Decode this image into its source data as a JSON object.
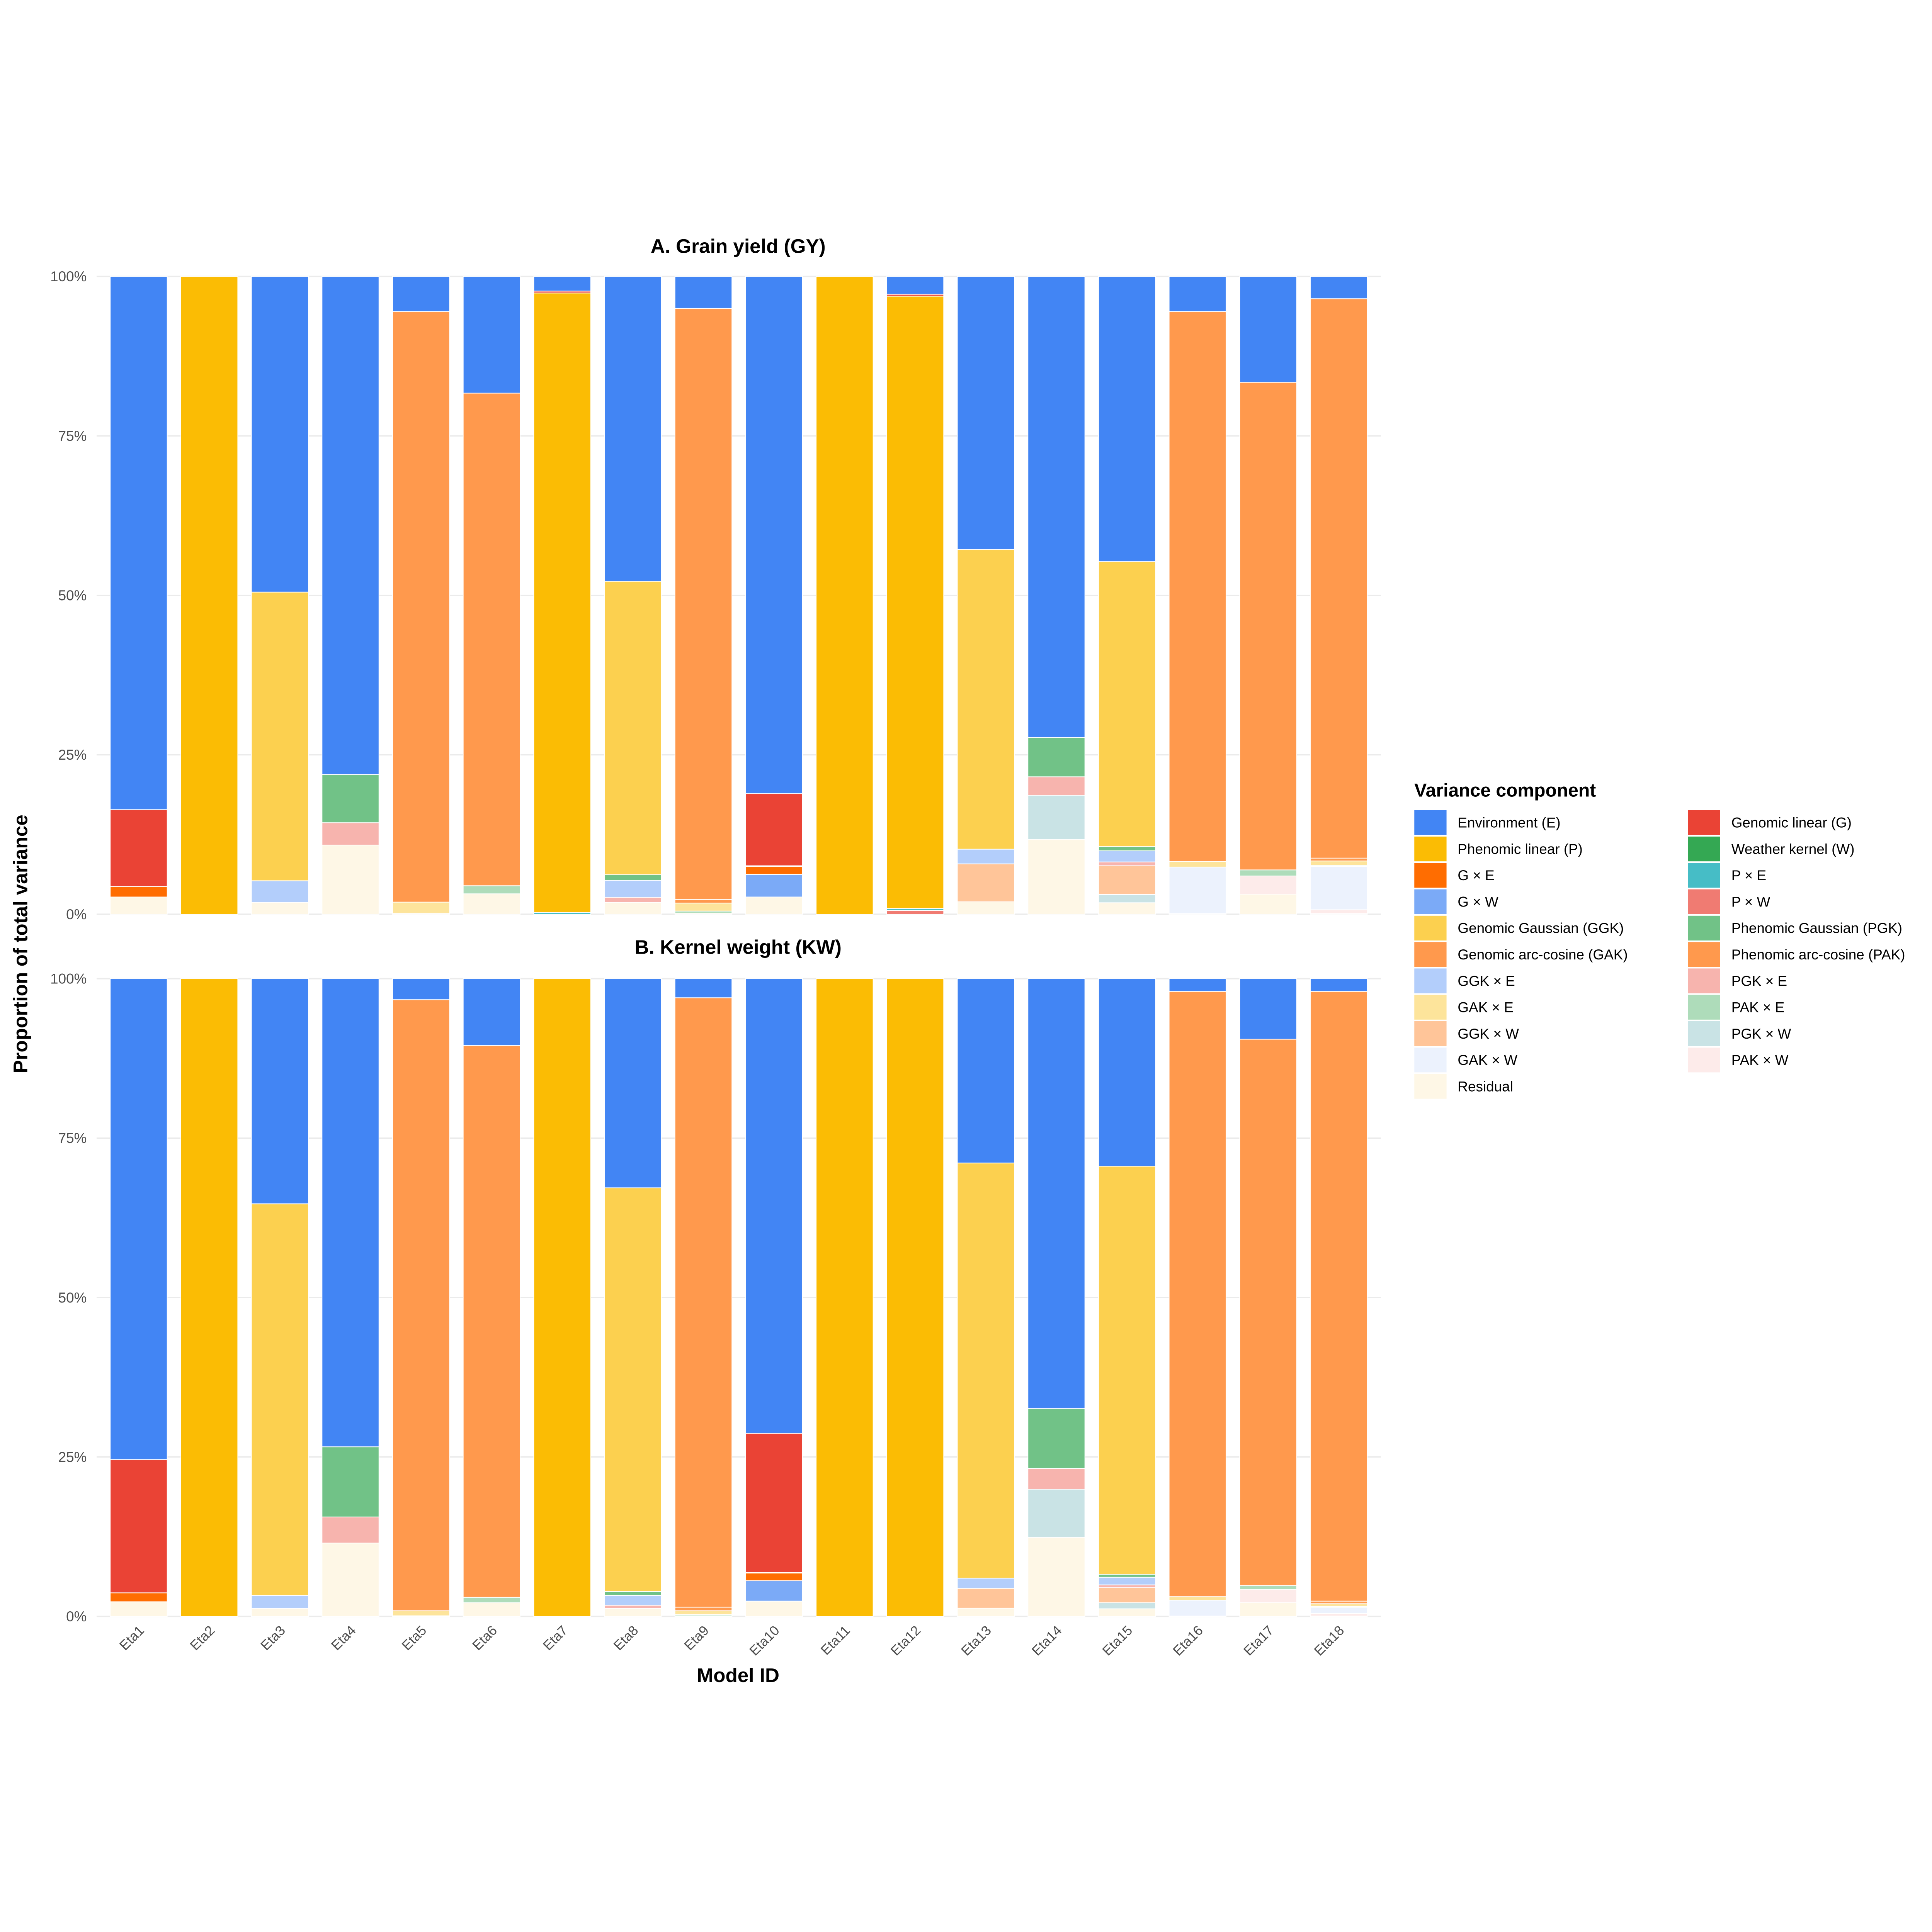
{
  "components": [
    {
      "key": "E",
      "label": "Environment (E)",
      "color": "#4285F4"
    },
    {
      "key": "P",
      "label": "Phenomic linear (P)",
      "color": "#FBBC04"
    },
    {
      "key": "GxE",
      "label": "G × E",
      "color": "#FF6D01"
    },
    {
      "key": "GxW",
      "label": "G × W",
      "color": "#7BAAF7"
    },
    {
      "key": "GGK",
      "label": "Genomic Gaussian (GGK)",
      "color": "#FCD04F"
    },
    {
      "key": "GAK",
      "label": "Genomic arc-cosine (GAK)",
      "color": "#FF994D"
    },
    {
      "key": "GGKxE",
      "label": "GGK × E",
      "color": "#B3CEFB"
    },
    {
      "key": "GAKxE",
      "label": "GAK × E",
      "color": "#FDE49B"
    },
    {
      "key": "GGKxW",
      "label": "GGK × W",
      "color": "#FFC599"
    },
    {
      "key": "GAKxW",
      "label": "GAK × W",
      "color": "#ECF2FD"
    },
    {
      "key": "Residual",
      "label": "Residual",
      "color": "#FEF7E6"
    },
    {
      "key": "G",
      "label": "Genomic linear (G)",
      "color": "#EA4335"
    },
    {
      "key": "W",
      "label": "Weather kernel (W)",
      "color": "#34A853"
    },
    {
      "key": "PxE",
      "label": "P × E",
      "color": "#46BDC6"
    },
    {
      "key": "PxW",
      "label": "P × W",
      "color": "#F07B72"
    },
    {
      "key": "PGK",
      "label": "Phenomic Gaussian (PGK)",
      "color": "#71C287"
    },
    {
      "key": "PAK",
      "label": "Phenomic arc-cosine (PAK)",
      "color": "#FF994D"
    },
    {
      "key": "PGKxE",
      "label": "PGK × E",
      "color": "#F7B4AE"
    },
    {
      "key": "PAKxE",
      "label": "PAK × E",
      "color": "#AEDCBA"
    },
    {
      "key": "PGKxW",
      "label": "PGK × W",
      "color": "#C9E3E5"
    },
    {
      "key": "PAKxW",
      "label": "PAK × W",
      "color": "#FDEBEA"
    }
  ],
  "stack_order_top_to_bottom": [
    "E",
    "G",
    "P",
    "W",
    "GxE",
    "PxE",
    "GxW",
    "PxW",
    "GGK",
    "PGK",
    "GAK",
    "PAK",
    "GGKxE",
    "PGKxE",
    "GAKxE",
    "PAKxE",
    "GGKxW",
    "PGKxW",
    "GAKxW",
    "PAKxW",
    "Residual"
  ],
  "legend": {
    "title": "Variance component",
    "columns": 2
  },
  "axes": {
    "xlabel": "Model ID",
    "ylabel": "Proportion of total variance"
  },
  "chart_data": [
    {
      "type": "bar",
      "stacked": true,
      "title": "A. Grain yield (GY)",
      "xlabel": "Model ID",
      "ylabel": "Proportion of total variance",
      "ylim": [
        0,
        100
      ],
      "yticks": [
        "0%",
        "25%",
        "50%",
        "75%",
        "100%"
      ],
      "grid": true,
      "legend_position": "right",
      "categories": [
        "Eta1",
        "Eta2",
        "Eta3",
        "Eta4",
        "Eta5",
        "Eta6",
        "Eta7",
        "Eta8",
        "Eta9",
        "Eta10",
        "Eta11",
        "Eta12",
        "Eta13",
        "Eta14",
        "Eta15",
        "Eta16",
        "Eta17",
        "Eta18"
      ],
      "values_percent": [
        {
          "Residual": 2.7,
          "GxE": 1.65,
          "G": 12.05,
          "E": 83.6
        },
        {
          "P": 100
        },
        {
          "Residual": 1.85,
          "GGKxE": 3.4,
          "GGK": 45.25,
          "E": 49.5
        },
        {
          "Residual": 10.85,
          "PGKxE": 3.5,
          "PGK": 7.55,
          "E": 78.1
        },
        {
          "Residual": 0.15,
          "GAKxE": 1.75,
          "GAK": 92.6,
          "E": 5.5
        },
        {
          "Residual": 3.2,
          "PAKxE": 1.27,
          "PAK": 77.23,
          "E": 18.3
        },
        {
          "PxE": 0.3,
          "P": 97.1,
          "G": 0.3,
          "E": 2.3
        },
        {
          "Residual": 1.85,
          "PGKxE": 0.8,
          "GGKxE": 2.65,
          "PGK": 0.9,
          "GGK": 46.0,
          "E": 47.8
        },
        {
          "Residual": 0.15,
          "PAKxE": 0.35,
          "GAKxE": 1.25,
          "PAK": 0.55,
          "GAK": 92.7,
          "E": 5.0
        },
        {
          "Residual": 2.7,
          "GxW": 3.55,
          "GxE": 1.25,
          "W": 0.1,
          "G": 11.3,
          "E": 81.1
        },
        {
          "P": 100
        },
        {
          "PxW": 0.6,
          "PxE": 0.3,
          "P": 96.0,
          "G": 0.3,
          "E": 2.8
        },
        {
          "Residual": 1.95,
          "GGKxW": 5.95,
          "GGKxE": 2.3,
          "GGK": 47.0,
          "E": 42.8
        },
        {
          "Residual": 11.75,
          "PGKxW": 6.9,
          "PGKxE": 2.9,
          "PGK": 6.15,
          "E": 72.3
        },
        {
          "Residual": 1.8,
          "PGKxW": 1.3,
          "GGKxW": 4.5,
          "PGKxE": 0.6,
          "GGKxE": 1.75,
          "PGK": 0.65,
          "GGK": 44.7,
          "E": 44.7
        },
        {
          "Residual": 0.1,
          "GAKxW": 7.3,
          "GAKxE": 0.9,
          "GAK": 86.2,
          "E": 5.5
        },
        {
          "Residual": 3.15,
          "PAKxW": 2.85,
          "PAKxE": 0.95,
          "PAK": 76.45,
          "E": 16.6
        },
        {
          "Residual": 0.1,
          "PAKxW": 0.6,
          "GAKxW": 6.8,
          "PAKxE": 0.15,
          "GAKxE": 0.7,
          "PAK": 0.45,
          "GAK": 87.7,
          "E": 3.5
        }
      ]
    },
    {
      "type": "bar",
      "stacked": true,
      "title": "B. Kernel weight (KW)",
      "xlabel": "Model ID",
      "ylabel": "Proportion of total variance",
      "ylim": [
        0,
        100
      ],
      "yticks": [
        "0%",
        "25%",
        "50%",
        "75%",
        "100%"
      ],
      "grid": true,
      "legend_position": "right",
      "categories": [
        "Eta1",
        "Eta2",
        "Eta3",
        "Eta4",
        "Eta5",
        "Eta6",
        "Eta7",
        "Eta8",
        "Eta9",
        "Eta10",
        "Eta11",
        "Eta12",
        "Eta13",
        "Eta14",
        "Eta15",
        "Eta16",
        "Eta17",
        "Eta18"
      ],
      "values_percent": [
        {
          "Residual": 2.3,
          "GxE": 1.4,
          "G": 20.9,
          "E": 75.4
        },
        {
          "P": 100
        },
        {
          "Residual": 1.25,
          "GGKxE": 2.05,
          "GGK": 61.4,
          "E": 35.3
        },
        {
          "Residual": 11.5,
          "PGKxE": 4.1,
          "PGK": 11.0,
          "E": 73.4
        },
        {
          "Residual": 0.1,
          "GAKxE": 0.8,
          "GAK": 95.8,
          "E": 3.3
        },
        {
          "Residual": 2.15,
          "PAKxE": 0.85,
          "PAK": 86.5,
          "E": 10.5
        },
        {
          "P": 100
        },
        {
          "Residual": 1.25,
          "PGKxE": 0.5,
          "GGKxE": 1.55,
          "PGK": 0.6,
          "GGK": 63.3,
          "E": 32.8
        },
        {
          "Residual": 0.1,
          "PAKxE": 0.2,
          "GAKxE": 0.6,
          "PAK": 0.55,
          "GAK": 95.55,
          "E": 3.0
        },
        {
          "Residual": 2.4,
          "GxW": 3.2,
          "GxE": 1.2,
          "W": 0.1,
          "G": 21.8,
          "E": 71.3
        },
        {
          "P": 100
        },
        {
          "P": 100
        },
        {
          "Residual": 1.3,
          "GGKxW": 3.1,
          "GGKxE": 1.6,
          "GGK": 65.1,
          "E": 28.9
        },
        {
          "Residual": 12.4,
          "PGKxW": 7.55,
          "PGKxE": 3.25,
          "PGK": 9.4,
          "E": 67.4
        },
        {
          "Residual": 1.2,
          "PGKxW": 0.95,
          "GGKxW": 2.35,
          "PGKxE": 0.45,
          "GGKxE": 1.2,
          "PGK": 0.45,
          "GGK": 64.0,
          "E": 29.4
        },
        {
          "Residual": 0.05,
          "GAKxW": 2.5,
          "GAKxE": 0.55,
          "GAK": 94.9,
          "E": 2.0
        },
        {
          "Residual": 2.15,
          "PAKxW": 2.05,
          "PAKxE": 0.65,
          "PAK": 85.65,
          "E": 9.5
        },
        {
          "Residual": 0.05,
          "PAKxW": 0.4,
          "GAKxW": 0.95,
          "PAKxE": 0.15,
          "GAKxE": 0.45,
          "PAK": 0.4,
          "GAK": 95.6,
          "E": 2.0
        }
      ]
    }
  ]
}
